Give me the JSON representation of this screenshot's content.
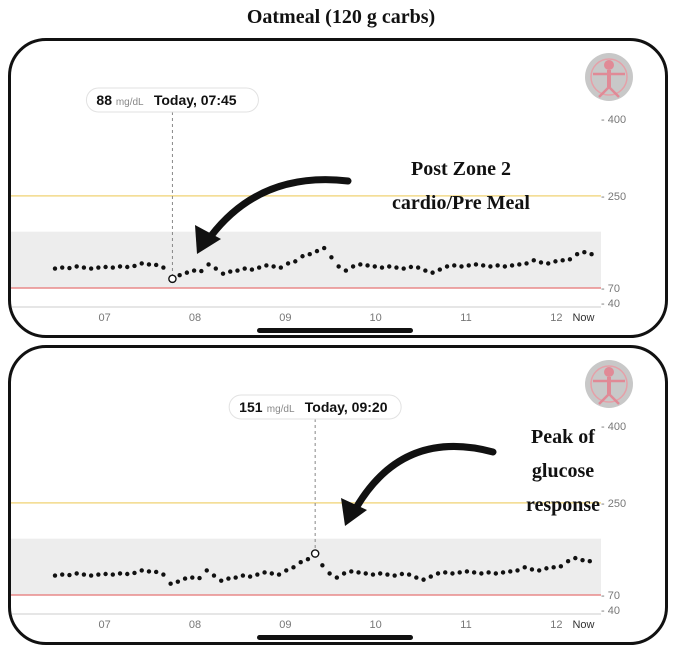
{
  "title": "Oatmeal (120 g carbs)",
  "colors": {
    "target_band": "#ededed",
    "high_line": "#f2d98a",
    "low_line": "#e88a8a",
    "points": "#111111",
    "guide": "#888888"
  },
  "logo_icon": "vitruvian-figure-logo",
  "chart_data": [
    {
      "type": "scatter",
      "unit": "mg/dL",
      "ylim": [
        40,
        400
      ],
      "y_ticks": [
        "400",
        "250",
        "70",
        "40"
      ],
      "high_threshold": 250,
      "low_threshold": 70,
      "target_range": [
        70,
        180
      ],
      "x_ticks": [
        "07",
        "08",
        "09",
        "10",
        "11",
        "12",
        "Now"
      ],
      "x_tick_hours": [
        7,
        8,
        9,
        10,
        11,
        12,
        12.3
      ],
      "x_range": [
        6.45,
        12.45
      ],
      "callout": {
        "value": "88",
        "unit": "mg/dL",
        "time": "Today, 07:45",
        "x_hour": 7.75
      },
      "annotation": {
        "lines": [
          "Post Zone 2",
          "cardio/Pre Meal"
        ]
      },
      "points": [
        [
          6.45,
          108
        ],
        [
          6.53,
          110
        ],
        [
          6.61,
          109
        ],
        [
          6.69,
          112
        ],
        [
          6.77,
          110
        ],
        [
          6.85,
          108
        ],
        [
          6.93,
          110
        ],
        [
          7.01,
          111
        ],
        [
          7.09,
          110
        ],
        [
          7.17,
          112
        ],
        [
          7.25,
          111
        ],
        [
          7.33,
          113
        ],
        [
          7.41,
          118
        ],
        [
          7.49,
          116
        ],
        [
          7.57,
          115
        ],
        [
          7.65,
          110
        ],
        [
          7.75,
          88
        ],
        [
          7.83,
          95
        ],
        [
          7.91,
          100
        ],
        [
          7.99,
          104
        ],
        [
          8.07,
          103
        ],
        [
          8.15,
          116
        ],
        [
          8.23,
          108
        ],
        [
          8.31,
          98
        ],
        [
          8.39,
          102
        ],
        [
          8.47,
          104
        ],
        [
          8.55,
          108
        ],
        [
          8.63,
          106
        ],
        [
          8.71,
          110
        ],
        [
          8.79,
          114
        ],
        [
          8.87,
          112
        ],
        [
          8.95,
          110
        ],
        [
          9.03,
          118
        ],
        [
          9.11,
          122
        ],
        [
          9.19,
          132
        ],
        [
          9.27,
          136
        ],
        [
          9.35,
          142
        ],
        [
          9.43,
          148
        ],
        [
          9.51,
          130
        ],
        [
          9.59,
          112
        ],
        [
          9.67,
          104
        ],
        [
          9.75,
          112
        ],
        [
          9.83,
          116
        ],
        [
          9.91,
          114
        ],
        [
          9.99,
          112
        ],
        [
          10.07,
          110
        ],
        [
          10.15,
          112
        ],
        [
          10.23,
          110
        ],
        [
          10.31,
          108
        ],
        [
          10.39,
          111
        ],
        [
          10.47,
          110
        ],
        [
          10.55,
          104
        ],
        [
          10.63,
          100
        ],
        [
          10.71,
          106
        ],
        [
          10.79,
          112
        ],
        [
          10.87,
          114
        ],
        [
          10.95,
          112
        ],
        [
          11.03,
          114
        ],
        [
          11.11,
          116
        ],
        [
          11.19,
          114
        ],
        [
          11.27,
          112
        ],
        [
          11.35,
          114
        ],
        [
          11.43,
          112
        ],
        [
          11.51,
          114
        ],
        [
          11.59,
          116
        ],
        [
          11.67,
          118
        ],
        [
          11.75,
          124
        ],
        [
          11.83,
          120
        ],
        [
          11.91,
          118
        ],
        [
          11.99,
          122
        ],
        [
          12.07,
          124
        ],
        [
          12.15,
          126
        ],
        [
          12.23,
          136
        ],
        [
          12.31,
          140
        ],
        [
          12.39,
          136
        ]
      ]
    },
    {
      "type": "scatter",
      "unit": "mg/dL",
      "ylim": [
        40,
        400
      ],
      "y_ticks": [
        "400",
        "250",
        "70",
        "40"
      ],
      "high_threshold": 250,
      "low_threshold": 70,
      "target_range": [
        70,
        180
      ],
      "x_ticks": [
        "07",
        "08",
        "09",
        "10",
        "11",
        "12",
        "Now"
      ],
      "x_tick_hours": [
        7,
        8,
        9,
        10,
        11,
        12,
        12.3
      ],
      "x_range": [
        6.45,
        12.45
      ],
      "callout": {
        "value": "151",
        "unit": "mg/dL",
        "time": "Today, 09:20",
        "x_hour": 9.33
      },
      "annotation": {
        "lines": [
          "Peak of",
          "glucose",
          "response"
        ]
      },
      "points": [
        [
          6.45,
          108
        ],
        [
          6.53,
          110
        ],
        [
          6.61,
          109
        ],
        [
          6.69,
          112
        ],
        [
          6.77,
          110
        ],
        [
          6.85,
          108
        ],
        [
          6.93,
          110
        ],
        [
          7.01,
          111
        ],
        [
          7.09,
          110
        ],
        [
          7.17,
          112
        ],
        [
          7.25,
          111
        ],
        [
          7.33,
          113
        ],
        [
          7.41,
          118
        ],
        [
          7.49,
          116
        ],
        [
          7.57,
          115
        ],
        [
          7.65,
          110
        ],
        [
          7.73,
          92
        ],
        [
          7.81,
          96
        ],
        [
          7.89,
          102
        ],
        [
          7.97,
          104
        ],
        [
          8.05,
          103
        ],
        [
          8.13,
          118
        ],
        [
          8.21,
          108
        ],
        [
          8.29,
          98
        ],
        [
          8.37,
          102
        ],
        [
          8.45,
          104
        ],
        [
          8.53,
          108
        ],
        [
          8.61,
          106
        ],
        [
          8.69,
          110
        ],
        [
          8.77,
          114
        ],
        [
          8.85,
          112
        ],
        [
          8.93,
          110
        ],
        [
          9.01,
          118
        ],
        [
          9.09,
          124
        ],
        [
          9.17,
          134
        ],
        [
          9.25,
          140
        ],
        [
          9.33,
          151
        ],
        [
          9.41,
          128
        ],
        [
          9.49,
          112
        ],
        [
          9.57,
          104
        ],
        [
          9.65,
          112
        ],
        [
          9.73,
          116
        ],
        [
          9.81,
          114
        ],
        [
          9.89,
          112
        ],
        [
          9.97,
          110
        ],
        [
          10.05,
          112
        ],
        [
          10.13,
          110
        ],
        [
          10.21,
          108
        ],
        [
          10.29,
          111
        ],
        [
          10.37,
          110
        ],
        [
          10.45,
          104
        ],
        [
          10.53,
          100
        ],
        [
          10.61,
          106
        ],
        [
          10.69,
          112
        ],
        [
          10.77,
          114
        ],
        [
          10.85,
          112
        ],
        [
          10.93,
          114
        ],
        [
          11.01,
          116
        ],
        [
          11.09,
          114
        ],
        [
          11.17,
          112
        ],
        [
          11.25,
          114
        ],
        [
          11.33,
          112
        ],
        [
          11.41,
          114
        ],
        [
          11.49,
          116
        ],
        [
          11.57,
          118
        ],
        [
          11.65,
          124
        ],
        [
          11.73,
          120
        ],
        [
          11.81,
          118
        ],
        [
          11.89,
          122
        ],
        [
          11.97,
          124
        ],
        [
          12.05,
          126
        ],
        [
          12.13,
          136
        ],
        [
          12.21,
          142
        ],
        [
          12.29,
          138
        ],
        [
          12.37,
          136
        ]
      ]
    }
  ]
}
